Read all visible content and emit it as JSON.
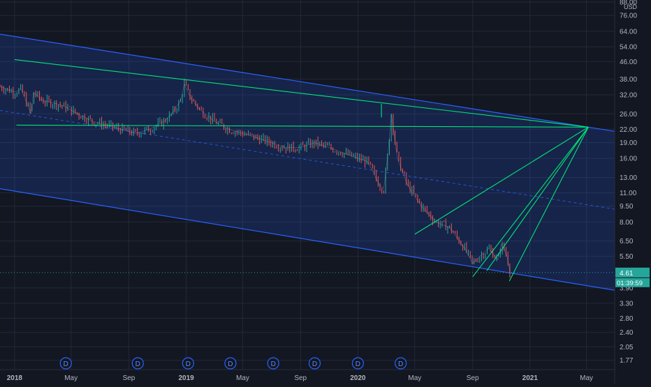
{
  "chart_data": {
    "type": "line",
    "title": "",
    "xlabel": "",
    "ylabel": "",
    "currency": "USD",
    "y_scale": "log",
    "ylim": [
      1.6,
      90
    ],
    "x_range": [
      "2017-12-01",
      "2021-06-30"
    ],
    "grid": true,
    "x_ticks": [
      {
        "label": "2018",
        "date": "2018-01-01"
      },
      {
        "label": "May",
        "date": "2018-05-01"
      },
      {
        "label": "Sep",
        "date": "2018-09-01"
      },
      {
        "label": "2019",
        "date": "2019-01-01"
      },
      {
        "label": "May",
        "date": "2019-05-01"
      },
      {
        "label": "Sep",
        "date": "2019-09-01"
      },
      {
        "label": "2020",
        "date": "2020-01-01"
      },
      {
        "label": "May",
        "date": "2020-05-01"
      },
      {
        "label": "Sep",
        "date": "2020-09-01"
      },
      {
        "label": "2021",
        "date": "2021-01-01"
      },
      {
        "label": "May",
        "date": "2021-05-01"
      }
    ],
    "y_ticks": [
      "88.00",
      "76.00",
      "64.00",
      "54.00",
      "46.00",
      "38.00",
      "32.00",
      "26.00",
      "22.00",
      "19.00",
      "16.00",
      "13.00",
      "11.00",
      "9.50",
      "8.00",
      "6.50",
      "5.50",
      "4.61",
      "3.90",
      "3.30",
      "2.80",
      "2.40",
      "2.05",
      "1.77"
    ],
    "last_price": {
      "value": "4.61",
      "countdown": "01:39:59",
      "color": "#26a69a"
    },
    "dividend_markers": [
      {
        "label": "D",
        "date": "2018-04-20"
      },
      {
        "label": "D",
        "date": "2018-09-20"
      },
      {
        "label": "D",
        "date": "2019-01-05"
      },
      {
        "label": "D",
        "date": "2019-04-05"
      },
      {
        "label": "D",
        "date": "2019-07-05"
      },
      {
        "label": "D",
        "date": "2019-10-01"
      },
      {
        "label": "D",
        "date": "2020-01-01"
      },
      {
        "label": "D",
        "date": "2020-04-01"
      }
    ],
    "series": [
      {
        "x": [
          "2017-12-01",
          "2018-01-01",
          "2018-01-15",
          "2018-02-05",
          "2018-02-10",
          "2018-03-01",
          "2018-04-01",
          "2018-04-20",
          "2018-05-15",
          "2018-06-15",
          "2018-07-15",
          "2018-08-15",
          "2018-09-15",
          "2018-10-15",
          "2018-11-15",
          "2018-12-01",
          "2018-12-20",
          "2018-12-28",
          "2019-01-10",
          "2019-02-01",
          "2019-03-01",
          "2019-04-01",
          "2019-05-01",
          "2019-06-01",
          "2019-07-01",
          "2019-08-01",
          "2019-09-01",
          "2019-10-01",
          "2019-11-01",
          "2019-12-01",
          "2020-01-01",
          "2020-01-20",
          "2020-02-01",
          "2020-02-15",
          "2020-02-25",
          "2020-03-05",
          "2020-03-12",
          "2020-03-25",
          "2020-04-15",
          "2020-05-15",
          "2020-06-15",
          "2020-07-15",
          "2020-08-15",
          "2020-09-01",
          "2020-09-20",
          "2020-10-05",
          "2020-10-25",
          "2020-11-01",
          "2020-11-12",
          "2020-11-20"
        ],
        "close": [
          35,
          33,
          34,
          26,
          33,
          30,
          29,
          28,
          26,
          24,
          23,
          22,
          21,
          22,
          24,
          26,
          30,
          36,
          31,
          27,
          24,
          22,
          21,
          20,
          19,
          18,
          18,
          19,
          18,
          17,
          16,
          15.5,
          14,
          12,
          11.5,
          17,
          26,
          16,
          12,
          9.5,
          8,
          7.5,
          6,
          5.1,
          5.6,
          6,
          5.3,
          6.3,
          5.6,
          4.61
        ]
      }
    ],
    "drawings": {
      "channel": {
        "upper": [
          {
            "x": "2017-12-01",
            "y": 62
          },
          {
            "x": "2021-06-30",
            "y": 21.5
          }
        ],
        "mid": [
          {
            "x": "2017-12-01",
            "y": 27
          },
          {
            "x": "2021-06-30",
            "y": 9.2
          }
        ],
        "lower": [
          {
            "x": "2017-12-01",
            "y": 11.5
          },
          {
            "x": "2021-06-30",
            "y": 3.8
          }
        ],
        "line_color": "#2962ff",
        "fill_color": "#2962ff"
      },
      "trendlines": [
        {
          "p1": {
            "x": "2018-01-01",
            "y": 47
          },
          "p2": {
            "x": "2021-05-05",
            "y": 22.5
          }
        },
        {
          "p1": {
            "x": "2018-01-05",
            "y": 23
          },
          "p2": {
            "x": "2021-05-05",
            "y": 22.5
          }
        },
        {
          "p1": {
            "x": "2020-02-20",
            "y": 29
          },
          "p2": {
            "x": "2020-02-20",
            "y": 25
          }
        },
        {
          "p1": {
            "x": "2020-05-01",
            "y": 7.0
          },
          "p2": {
            "x": "2021-05-05",
            "y": 22.5
          }
        },
        {
          "p1": {
            "x": "2020-09-01",
            "y": 4.4
          },
          "p2": {
            "x": "2021-05-05",
            "y": 22.5
          }
        },
        {
          "p1": {
            "x": "2020-10-01",
            "y": 4.7
          },
          "p2": {
            "x": "2021-05-05",
            "y": 22.5
          }
        },
        {
          "p1": {
            "x": "2020-11-18",
            "y": 4.2
          },
          "p2": {
            "x": "2021-05-05",
            "y": 22.5
          }
        }
      ],
      "trend_color": "#00e676"
    }
  }
}
